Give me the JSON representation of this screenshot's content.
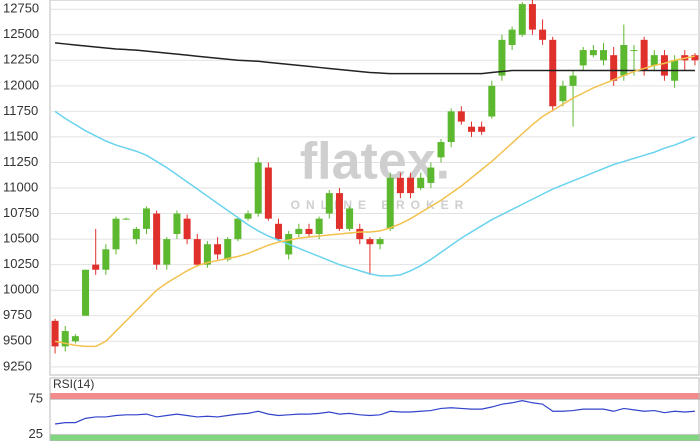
{
  "chart_data": [
    {
      "type": "candlestick",
      "ylim": [
        9170,
        12840
      ],
      "yticks": [
        9250,
        9500,
        9750,
        10000,
        10250,
        10500,
        10750,
        11000,
        11250,
        11500,
        11750,
        12000,
        12250,
        12500,
        12750
      ],
      "grid": true,
      "up_color": "#5cb82e",
      "down_color": "#e0302c",
      "open": [
        9700,
        9450,
        9500,
        9750,
        10250,
        10200,
        10400,
        10700,
        10500,
        10600,
        10750,
        10250,
        10550,
        10700,
        10500,
        10250,
        10450,
        10300,
        10500,
        10700,
        10750,
        11200,
        10650,
        10350,
        10550,
        10600,
        10550,
        10750,
        10950,
        10600,
        10600,
        10500,
        10450,
        10600,
        11100,
        11100,
        11000,
        11050,
        11300,
        11450,
        11750,
        11600,
        11600,
        11700,
        12100,
        12400,
        12500,
        12800,
        12550,
        12450,
        11850,
        12000,
        12200,
        12300,
        12250,
        12300,
        12100,
        12350,
        12450,
        12200,
        12300,
        12050,
        12300,
        12300
      ],
      "high": [
        9720,
        9650,
        9570,
        10200,
        10600,
        10450,
        10720,
        10710,
        10620,
        10820,
        10780,
        10520,
        10780,
        10740,
        10550,
        10480,
        10520,
        10520,
        10720,
        10780,
        11300,
        11250,
        10700,
        10580,
        10650,
        10650,
        10720,
        10980,
        11000,
        10820,
        10650,
        10520,
        10520,
        11150,
        11150,
        11150,
        11150,
        11250,
        11480,
        11780,
        11800,
        11650,
        11650,
        12050,
        12500,
        12580,
        12820,
        12840,
        12650,
        12480,
        12050,
        12150,
        12380,
        12400,
        12420,
        12380,
        12600,
        12400,
        12480,
        12350,
        12350,
        12300,
        12350,
        12320
      ],
      "low": [
        9380,
        9400,
        9480,
        9750,
        10150,
        10150,
        10350,
        10690,
        10450,
        10550,
        10200,
        10200,
        10500,
        10450,
        10230,
        10220,
        10300,
        10280,
        10480,
        10680,
        10720,
        10680,
        10480,
        10300,
        10520,
        10520,
        10500,
        10700,
        10580,
        10580,
        10450,
        10150,
        10400,
        10580,
        10900,
        10900,
        10980,
        11000,
        11250,
        11400,
        11620,
        11500,
        11520,
        11680,
        12050,
        12350,
        12480,
        12500,
        12400,
        11750,
        11800,
        11600,
        12150,
        12280,
        12200,
        12000,
        12050,
        12100,
        12100,
        12150,
        12050,
        11980,
        12150,
        12200
      ],
      "close": [
        9450,
        9600,
        9550,
        10200,
        10200,
        10400,
        10700,
        10700,
        10600,
        10800,
        10250,
        10500,
        10750,
        10500,
        10250,
        10450,
        10350,
        10500,
        10700,
        10750,
        11250,
        10700,
        10500,
        10550,
        10600,
        10550,
        10700,
        10950,
        10600,
        10800,
        10500,
        10450,
        10500,
        11100,
        10950,
        10950,
        11100,
        11200,
        11450,
        11750,
        11650,
        11550,
        11550,
        12000,
        12450,
        12550,
        12800,
        12550,
        12450,
        11800,
        12000,
        12100,
        12350,
        12350,
        12350,
        12050,
        12400,
        12350,
        12150,
        12300,
        12100,
        12250,
        12250,
        12250
      ],
      "overlays": [
        {
          "color": "#222222",
          "values": [
            12420,
            12410,
            12400,
            12390,
            12380,
            12370,
            12360,
            12355,
            12350,
            12340,
            12330,
            12320,
            12310,
            12300,
            12290,
            12280,
            12270,
            12260,
            12250,
            12245,
            12240,
            12230,
            12220,
            12210,
            12200,
            12190,
            12180,
            12170,
            12160,
            12150,
            12140,
            12130,
            12125,
            12120,
            12120,
            12120,
            12120,
            12120,
            12120,
            12120,
            12120,
            12120,
            12120,
            12130,
            12140,
            12150,
            12150,
            12150,
            12150,
            12150,
            12150,
            12150,
            12150,
            12150,
            12150,
            12150,
            12150,
            12150,
            12150,
            12150,
            12150,
            12150,
            12150,
            12150
          ]
        },
        {
          "color": "#6ad3ee",
          "values": [
            11750,
            11680,
            11620,
            11560,
            11510,
            11460,
            11420,
            11390,
            11360,
            11320,
            11260,
            11200,
            11130,
            11060,
            10990,
            10920,
            10850,
            10780,
            10710,
            10640,
            10580,
            10530,
            10490,
            10450,
            10410,
            10370,
            10330,
            10290,
            10250,
            10220,
            10190,
            10160,
            10140,
            10140,
            10150,
            10190,
            10240,
            10300,
            10370,
            10440,
            10510,
            10570,
            10630,
            10690,
            10740,
            10790,
            10840,
            10890,
            10940,
            10990,
            11030,
            11070,
            11110,
            11150,
            11190,
            11230,
            11260,
            11290,
            11320,
            11350,
            11390,
            11420,
            11460,
            11500
          ]
        },
        {
          "color": "#f2c14e",
          "values": [
            9500,
            9480,
            9460,
            9450,
            9450,
            9500,
            9600,
            9700,
            9800,
            9900,
            10000,
            10070,
            10130,
            10190,
            10240,
            10270,
            10290,
            10310,
            10330,
            10360,
            10400,
            10440,
            10470,
            10490,
            10510,
            10520,
            10530,
            10540,
            10550,
            10560,
            10570,
            10570,
            10580,
            10610,
            10650,
            10700,
            10760,
            10820,
            10880,
            10950,
            11020,
            11100,
            11180,
            11260,
            11350,
            11440,
            11530,
            11620,
            11700,
            11760,
            11820,
            11880,
            11930,
            11980,
            12020,
            12060,
            12100,
            12140,
            12170,
            12200,
            12220,
            12250,
            12270,
            12290
          ]
        }
      ]
    },
    {
      "type": "line",
      "title": "RSI(14)",
      "ylim": [
        16,
        105
      ],
      "yticks": [
        25,
        75
      ],
      "color": "#3344cc",
      "upper_band_color": "#f28b8b",
      "lower_band_color": "#7fd67f",
      "values": [
        40,
        42,
        42,
        48,
        50,
        50,
        52,
        53,
        53,
        54,
        50,
        52,
        54,
        52,
        50,
        51,
        50,
        52,
        54,
        55,
        58,
        54,
        52,
        53,
        54,
        54,
        55,
        57,
        54,
        55,
        53,
        52,
        53,
        58,
        57,
        57,
        58,
        59,
        62,
        63,
        62,
        61,
        61,
        64,
        68,
        70,
        73,
        70,
        68,
        58,
        58,
        59,
        61,
        61,
        61,
        58,
        62,
        60,
        58,
        59,
        56,
        58,
        57,
        58
      ]
    }
  ],
  "watermark": {
    "logo": "flatex.",
    "tagline": "ONLINE BROKER"
  }
}
